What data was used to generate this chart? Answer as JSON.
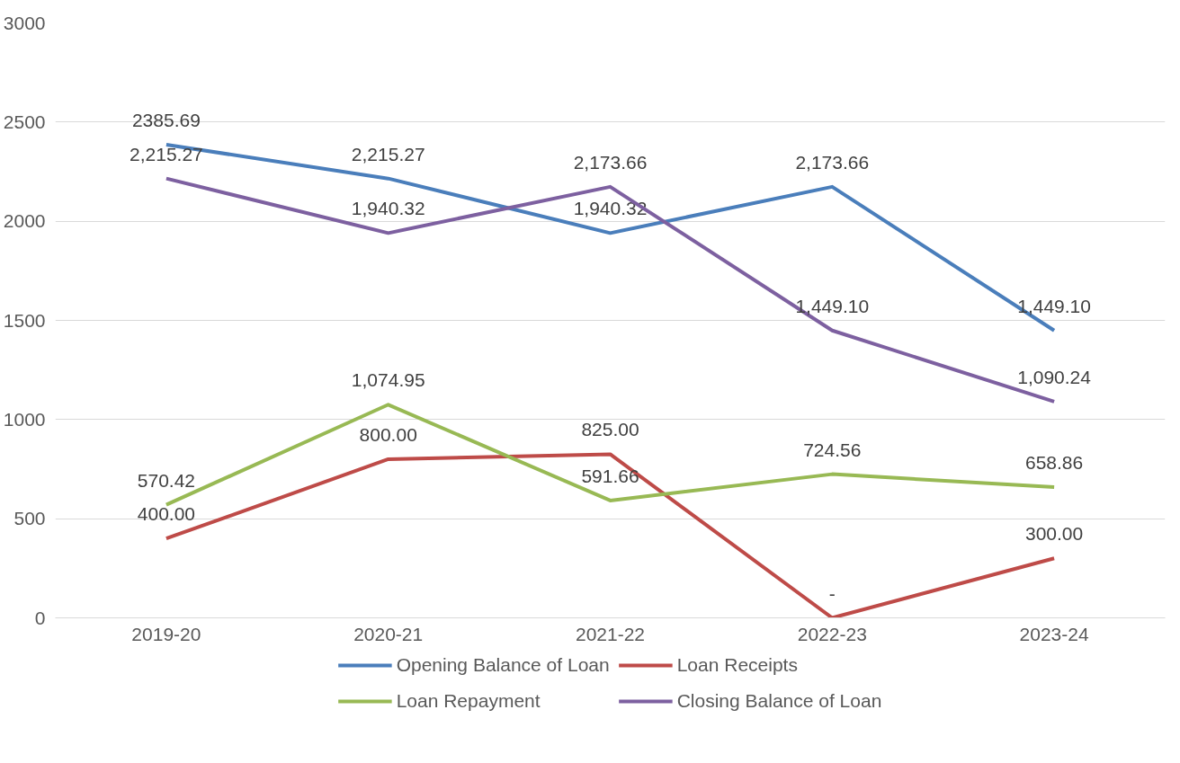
{
  "chart_data": {
    "type": "line",
    "categories": [
      "2019-20",
      "2020-21",
      "2021-22",
      "2022-23",
      "2023-24"
    ],
    "series": [
      {
        "name": "Opening Balance of Loan",
        "color": "#4a7ebb",
        "values": [
          2385.69,
          2215.27,
          1940.32,
          2173.66,
          1449.1
        ],
        "value_labels": [
          "2385.69",
          "2,215.27",
          "1,940.32",
          "2,173.66",
          "1,449.10"
        ]
      },
      {
        "name": "Loan Receipts",
        "color": "#be4b48",
        "values": [
          400.0,
          800.0,
          825.0,
          0,
          300.0
        ],
        "value_labels": [
          "400.00",
          "800.00",
          "825.00",
          "-",
          "300.00"
        ]
      },
      {
        "name": "Loan Repayment",
        "color": "#98b954",
        "values": [
          570.42,
          1074.95,
          591.66,
          724.56,
          658.86
        ],
        "value_labels": [
          "570.42",
          "1,074.95",
          "591.66",
          "724.56",
          "658.86"
        ]
      },
      {
        "name": "Closing Balance of Loan",
        "color": "#7d60a0",
        "values": [
          2215.27,
          1940.32,
          2173.66,
          1449.1,
          1090.24
        ],
        "value_labels": [
          "2,215.27",
          "1,940.32",
          "2,173.66",
          "1,449.10",
          "1,090.24"
        ]
      }
    ],
    "ylim": [
      0,
      3000
    ],
    "yticks": [
      0,
      500,
      1000,
      1500,
      2000,
      2500,
      3000
    ],
    "grid": "y",
    "legend": "bottom",
    "marker": "none",
    "line_style": "solid"
  }
}
